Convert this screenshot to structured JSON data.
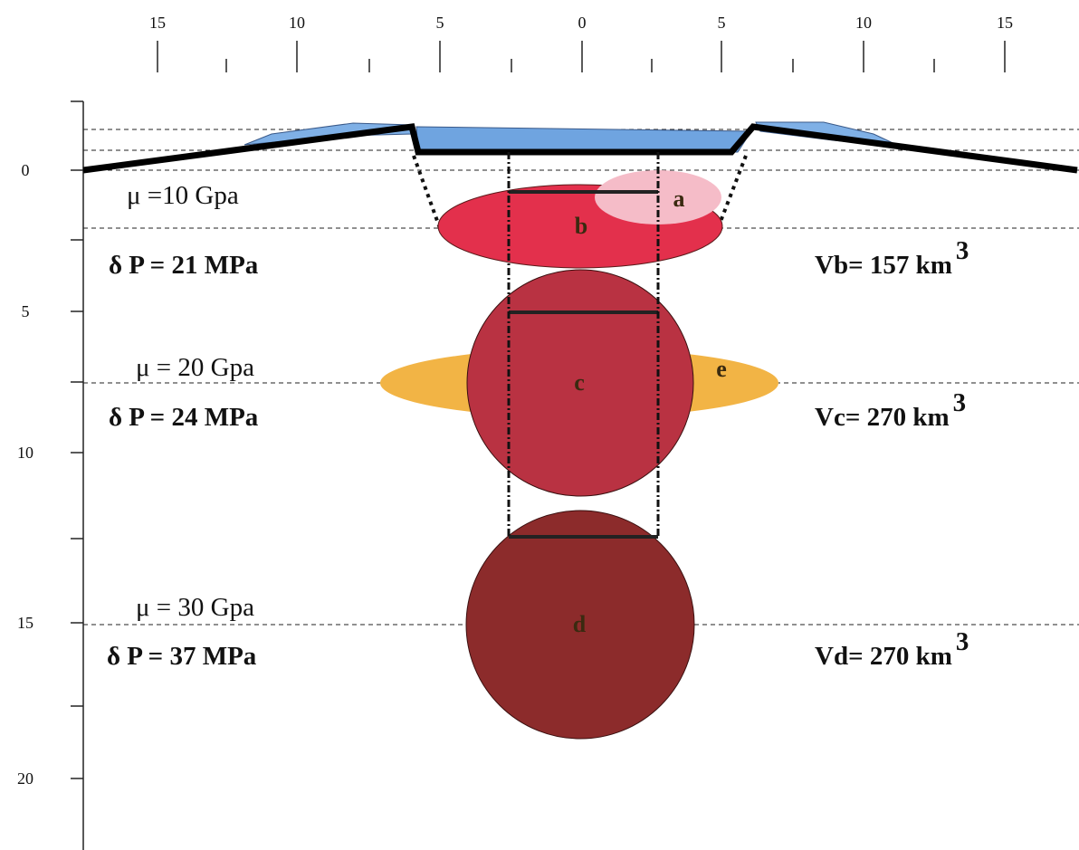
{
  "top_axis": {
    "labels": [
      "15",
      "10",
      "5",
      "0",
      "5",
      "10",
      "15"
    ]
  },
  "left_axis": {
    "labels": [
      "0",
      "5",
      "10",
      "15",
      "20"
    ]
  },
  "bodies": {
    "labels": [
      "a",
      "b",
      "c",
      "d",
      "e"
    ]
  },
  "layers": [
    {
      "shear_modulus": "μ =10 Gpa",
      "pressure": "δ P = 21 MPa",
      "volume": "Vb= 157 km",
      "volume_exponent": "3"
    },
    {
      "shear_modulus": "μ = 20 Gpa",
      "pressure": "δ P = 24 MPa",
      "volume": "Vc= 270 km",
      "volume_exponent": "3"
    },
    {
      "shear_modulus": "μ = 30  Gpa",
      "pressure": "δ P = 37  MPa",
      "volume": "Vd= 270 km",
      "volume_exponent": "3"
    }
  ]
}
